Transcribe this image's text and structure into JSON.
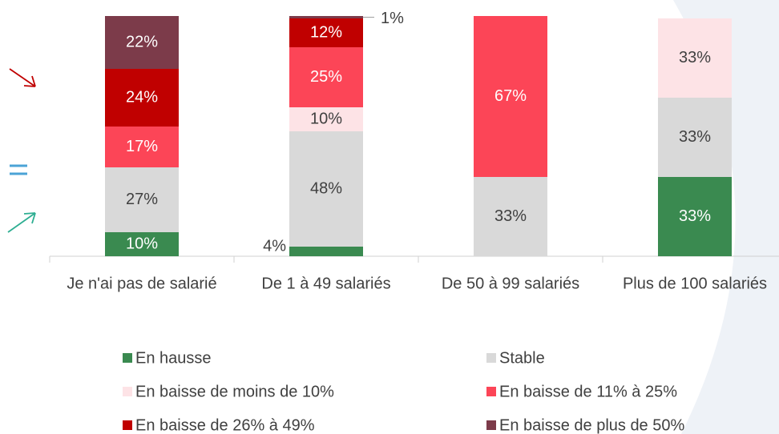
{
  "chart_data": {
    "type": "stacked_bar",
    "categories": [
      "Je n'ai pas de salarié",
      "De 1 à 49 salariés",
      "De 50 à 99 salariés",
      "Plus de 100 salariés"
    ],
    "ylim": [
      0,
      100
    ],
    "series": [
      {
        "name": "En hausse",
        "color": "#3a8a50",
        "values": [
          10,
          4,
          0,
          33
        ],
        "value_labels": [
          "10%",
          "4%",
          null,
          "33%"
        ]
      },
      {
        "name": "Stable",
        "color": "#d9d9d9",
        "values": [
          27,
          48,
          33,
          33
        ],
        "value_labels": [
          "27%",
          "48%",
          "33%",
          "33%"
        ]
      },
      {
        "name": "En baisse de moins de 10%",
        "color": "#fde3e6",
        "values": [
          0,
          10,
          0,
          33
        ],
        "value_labels": [
          null,
          "10%",
          null,
          "33%"
        ]
      },
      {
        "name": "En baisse de 11% à 25%",
        "color": "#fc4557",
        "values": [
          17,
          25,
          67,
          0
        ],
        "value_labels": [
          "17%",
          "25%",
          "67%",
          null
        ]
      },
      {
        "name": "En baisse de 26% à 49%",
        "color": "#c00000",
        "values": [
          24,
          12,
          0,
          0
        ],
        "value_labels": [
          "24%",
          "12%",
          null,
          null
        ]
      },
      {
        "name": "En baisse de plus de 50%",
        "color": "#7c3b4a",
        "values": [
          22,
          1,
          0,
          0
        ],
        "value_labels": [
          "22%",
          "1%",
          null,
          null
        ]
      }
    ]
  }
}
